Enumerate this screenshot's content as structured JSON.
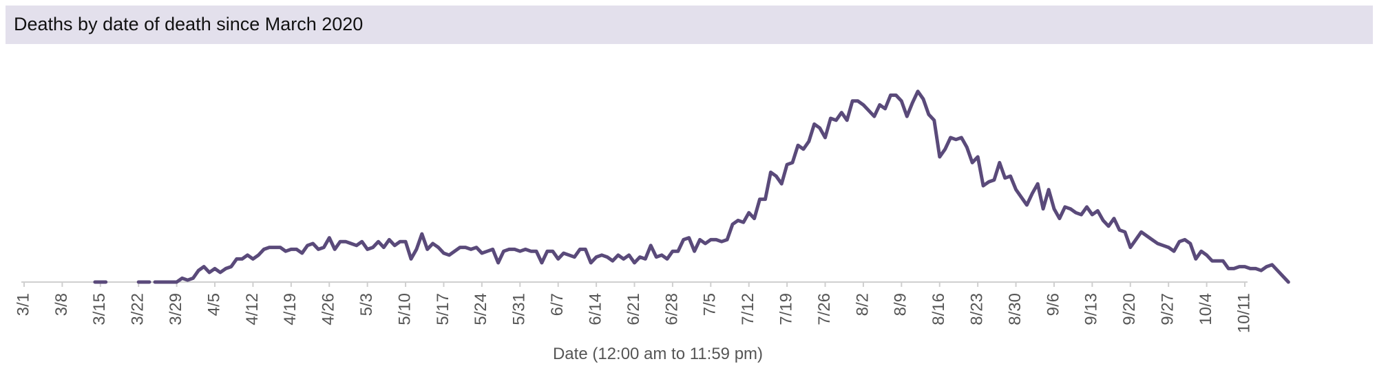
{
  "header": {
    "title": "Deaths by date of death since March 2020"
  },
  "chart_data": {
    "type": "line",
    "title": "Deaths by date of death since March 2020",
    "xlabel": "Date (12:00 am to 11:59 pm)",
    "ylabel": "",
    "x_start": "3/1",
    "x_end": "10/11",
    "ylim": [
      0,
      100
    ],
    "y_axis_visible": false,
    "grid": false,
    "line_color": "#5a4a7a",
    "x_ticks": [
      "3/1",
      "3/8",
      "3/15",
      "3/22",
      "3/29",
      "4/5",
      "4/12",
      "4/19",
      "4/26",
      "5/3",
      "5/10",
      "5/17",
      "5/24",
      "5/31",
      "6/7",
      "6/14",
      "6/21",
      "6/28",
      "7/5",
      "7/12",
      "7/19",
      "7/26",
      "8/2",
      "8/9",
      "8/16",
      "8/23",
      "8/30",
      "9/6",
      "9/13",
      "9/20",
      "9/27",
      "10/4",
      "10/11"
    ],
    "series": [
      {
        "segments": [
          [
            [
              13,
              0
            ],
            [
              14,
              0
            ],
            [
              15,
              0
            ]
          ],
          [
            [
              21,
              0
            ],
            [
              22,
              0
            ],
            [
              23,
              0
            ]
          ],
          [
            [
              24,
              0
            ],
            [
              25,
              0
            ],
            [
              26,
              0
            ],
            [
              27,
              0
            ],
            [
              28,
              0
            ],
            [
              29,
              2
            ],
            [
              30,
              1
            ],
            [
              31,
              2
            ],
            [
              32,
              6
            ],
            [
              33,
              8
            ],
            [
              34,
              5
            ],
            [
              35,
              7
            ],
            [
              36,
              5
            ],
            [
              37,
              7
            ],
            [
              38,
              8
            ],
            [
              39,
              12
            ],
            [
              40,
              12
            ],
            [
              41,
              14
            ],
            [
              42,
              12
            ],
            [
              43,
              14
            ],
            [
              44,
              17
            ],
            [
              45,
              18
            ],
            [
              46,
              18
            ],
            [
              47,
              18
            ],
            [
              48,
              16
            ],
            [
              49,
              17
            ],
            [
              50,
              17
            ],
            [
              51,
              15
            ],
            [
              52,
              19
            ],
            [
              53,
              20
            ],
            [
              54,
              17
            ],
            [
              55,
              18
            ],
            [
              56,
              23
            ],
            [
              57,
              17
            ],
            [
              58,
              21
            ],
            [
              59,
              21
            ],
            [
              60,
              20
            ],
            [
              61,
              19
            ],
            [
              62,
              21
            ],
            [
              63,
              17
            ],
            [
              64,
              18
            ],
            [
              65,
              21
            ],
            [
              66,
              18
            ],
            [
              67,
              22
            ],
            [
              68,
              19
            ],
            [
              69,
              21
            ],
            [
              70,
              21
            ],
            [
              71,
              12
            ],
            [
              72,
              17
            ],
            [
              73,
              25
            ],
            [
              74,
              17
            ],
            [
              75,
              20
            ],
            [
              76,
              18
            ],
            [
              77,
              15
            ],
            [
              78,
              14
            ],
            [
              79,
              16
            ],
            [
              80,
              18
            ],
            [
              81,
              18
            ],
            [
              82,
              17
            ],
            [
              83,
              18
            ],
            [
              84,
              15
            ],
            [
              85,
              16
            ],
            [
              86,
              17
            ],
            [
              87,
              10
            ],
            [
              88,
              16
            ],
            [
              89,
              17
            ],
            [
              90,
              17
            ],
            [
              91,
              16
            ],
            [
              92,
              17
            ],
            [
              93,
              16
            ],
            [
              94,
              16
            ],
            [
              95,
              10
            ],
            [
              96,
              16
            ],
            [
              97,
              16
            ],
            [
              98,
              12
            ],
            [
              99,
              15
            ],
            [
              100,
              14
            ],
            [
              101,
              13
            ],
            [
              102,
              17
            ],
            [
              103,
              17
            ],
            [
              104,
              10
            ],
            [
              105,
              13
            ],
            [
              106,
              14
            ],
            [
              107,
              13
            ],
            [
              108,
              11
            ],
            [
              109,
              14
            ],
            [
              110,
              12
            ],
            [
              111,
              14
            ],
            [
              112,
              10
            ],
            [
              113,
              13
            ],
            [
              114,
              12
            ],
            [
              115,
              19
            ],
            [
              116,
              13
            ],
            [
              117,
              14
            ],
            [
              118,
              12
            ],
            [
              119,
              16
            ],
            [
              120,
              16
            ],
            [
              121,
              22
            ],
            [
              122,
              23
            ],
            [
              123,
              16
            ],
            [
              124,
              22
            ],
            [
              125,
              20
            ],
            [
              126,
              22
            ],
            [
              127,
              22
            ],
            [
              128,
              21
            ],
            [
              129,
              22
            ],
            [
              130,
              30
            ],
            [
              131,
              32
            ],
            [
              132,
              31
            ],
            [
              133,
              36
            ],
            [
              134,
              33
            ],
            [
              135,
              43
            ],
            [
              136,
              43
            ],
            [
              137,
              57
            ],
            [
              138,
              55
            ],
            [
              139,
              51
            ],
            [
              140,
              61
            ],
            [
              141,
              62
            ],
            [
              142,
              71
            ],
            [
              143,
              69
            ],
            [
              144,
              73
            ],
            [
              145,
              82
            ],
            [
              146,
              80
            ],
            [
              147,
              75
            ],
            [
              148,
              85
            ],
            [
              149,
              84
            ],
            [
              150,
              88
            ],
            [
              151,
              84
            ],
            [
              152,
              94
            ],
            [
              153,
              94
            ],
            [
              154,
              92
            ],
            [
              155,
              89
            ],
            [
              156,
              86
            ],
            [
              157,
              92
            ],
            [
              158,
              90
            ],
            [
              159,
              97
            ],
            [
              160,
              97
            ],
            [
              161,
              94
            ],
            [
              162,
              86
            ],
            [
              163,
              93
            ],
            [
              164,
              99
            ],
            [
              165,
              95
            ],
            [
              166,
              87
            ],
            [
              167,
              84
            ],
            [
              168,
              65
            ],
            [
              169,
              69
            ],
            [
              170,
              75
            ],
            [
              171,
              74
            ],
            [
              172,
              75
            ],
            [
              173,
              70
            ],
            [
              174,
              62
            ],
            [
              175,
              65
            ],
            [
              176,
              50
            ],
            [
              177,
              52
            ],
            [
              178,
              53
            ],
            [
              179,
              62
            ],
            [
              180,
              54
            ],
            [
              181,
              55
            ],
            [
              182,
              48
            ],
            [
              183,
              44
            ],
            [
              184,
              40
            ],
            [
              185,
              46
            ],
            [
              186,
              51
            ],
            [
              187,
              38
            ],
            [
              188,
              48
            ],
            [
              189,
              38
            ],
            [
              190,
              33
            ],
            [
              191,
              39
            ],
            [
              192,
              38
            ],
            [
              193,
              36
            ],
            [
              194,
              35
            ],
            [
              195,
              39
            ],
            [
              196,
              35
            ],
            [
              197,
              37
            ],
            [
              198,
              32
            ],
            [
              199,
              29
            ],
            [
              200,
              33
            ],
            [
              201,
              27
            ],
            [
              202,
              26
            ],
            [
              203,
              18
            ],
            [
              204,
              22
            ],
            [
              205,
              26
            ],
            [
              206,
              24
            ],
            [
              207,
              22
            ],
            [
              208,
              20
            ],
            [
              209,
              19
            ],
            [
              210,
              18
            ],
            [
              211,
              16
            ],
            [
              212,
              21
            ],
            [
              213,
              22
            ],
            [
              214,
              20
            ],
            [
              215,
              12
            ],
            [
              216,
              16
            ],
            [
              217,
              14
            ],
            [
              218,
              11
            ],
            [
              219,
              11
            ],
            [
              220,
              11
            ],
            [
              221,
              7
            ],
            [
              222,
              7
            ],
            [
              223,
              8
            ],
            [
              224,
              8
            ],
            [
              225,
              7
            ],
            [
              226,
              7
            ],
            [
              227,
              6
            ],
            [
              228,
              8
            ],
            [
              229,
              9
            ],
            [
              230,
              6
            ],
            [
              231,
              3
            ],
            [
              232,
              0
            ]
          ]
        ]
      }
    ]
  }
}
